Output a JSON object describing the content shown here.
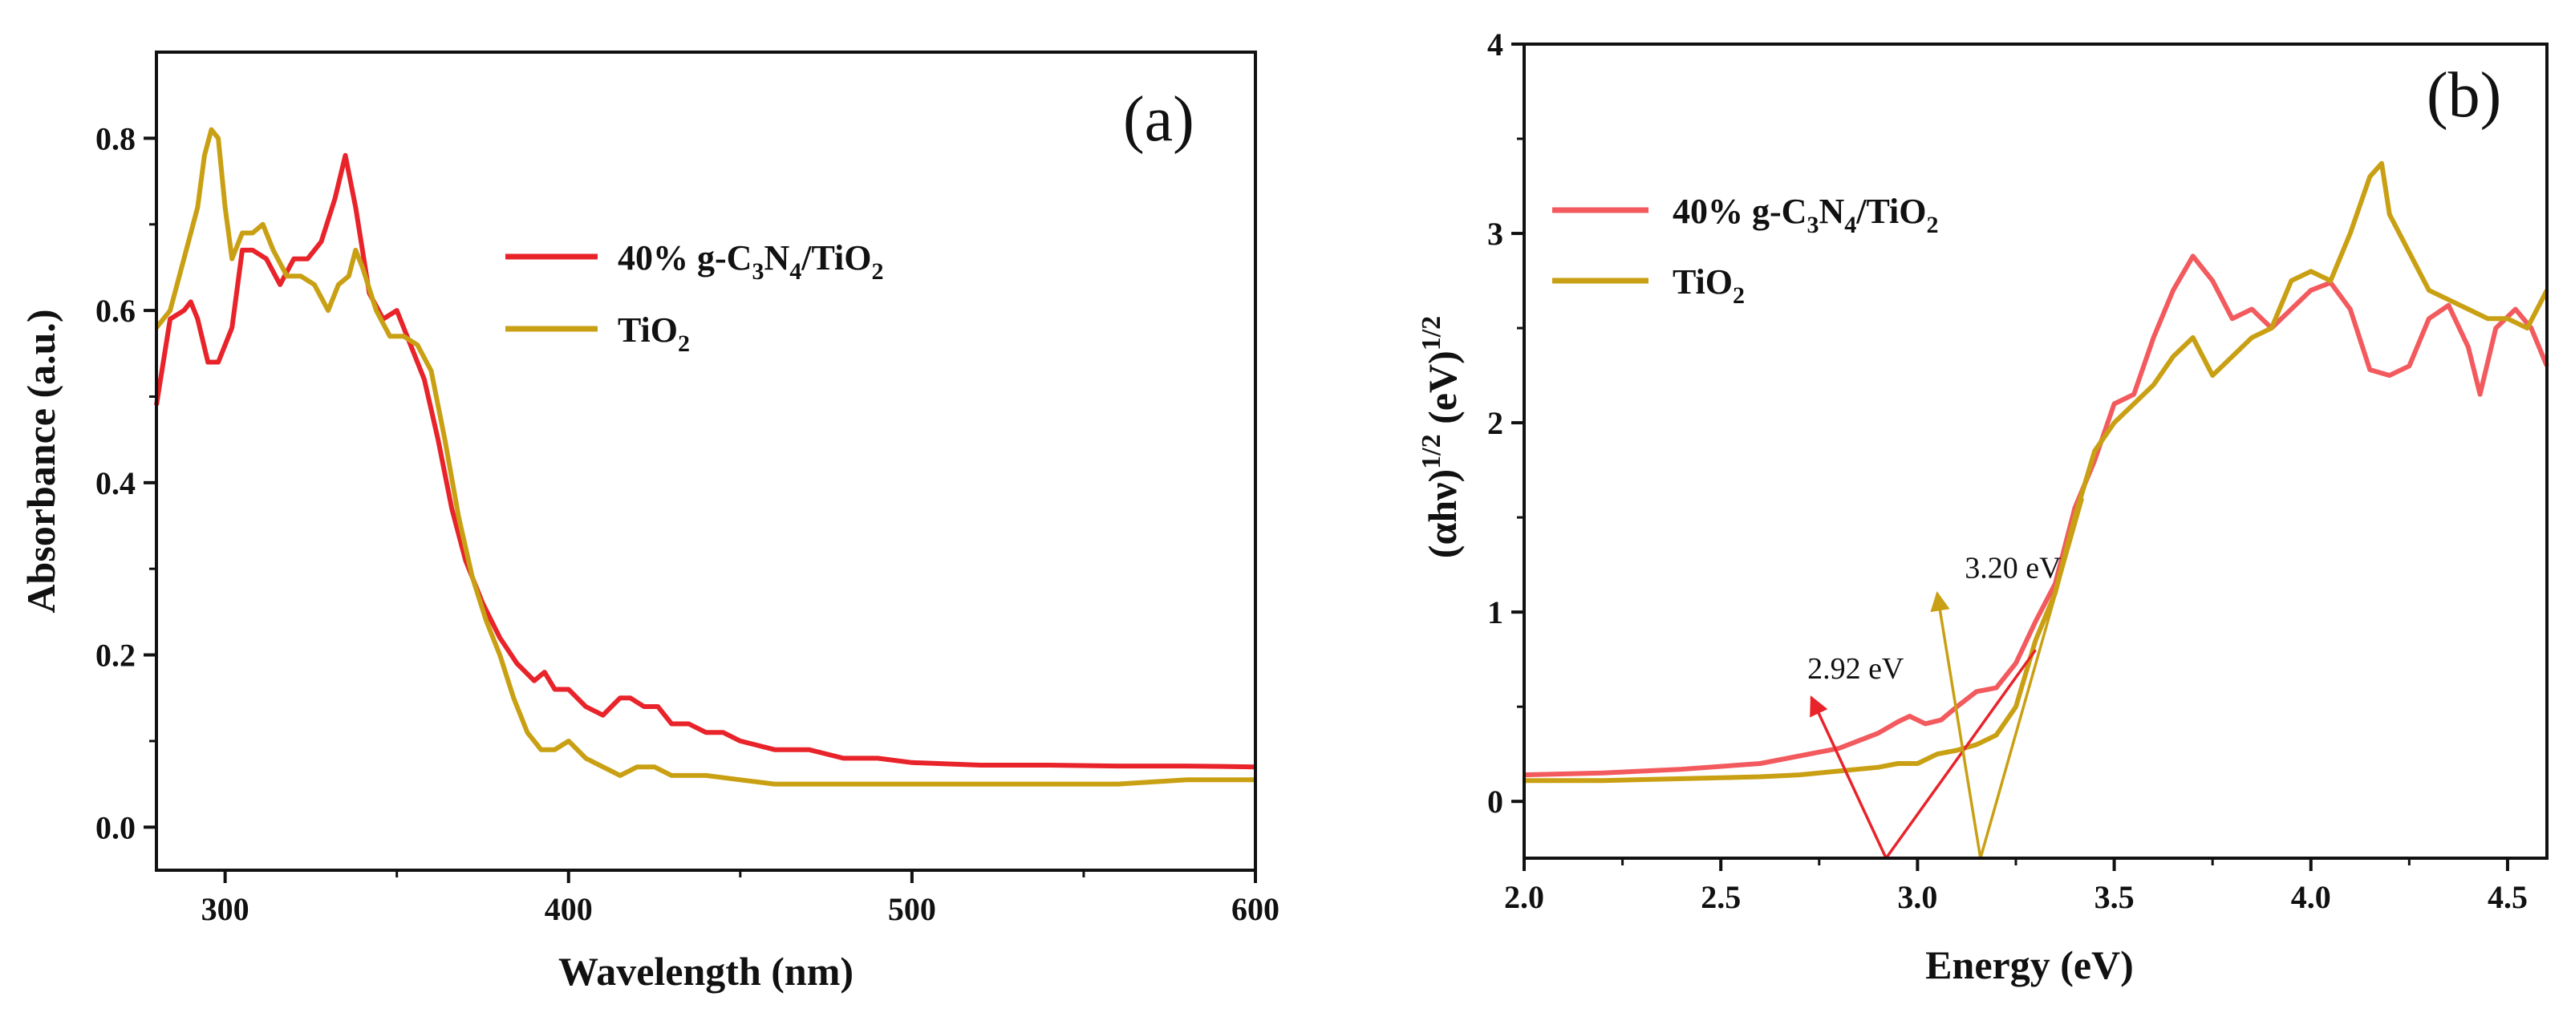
{
  "colors": {
    "composite": "#e8232a",
    "tio2": "#c9a013",
    "composite_b": "#f25a5e"
  },
  "chart_data": [
    {
      "id": "a",
      "type": "line",
      "panel_label": "(a)",
      "xlabel": "Wavelength (nm)",
      "ylabel": "Absorbance (a.u.)",
      "xlim": [
        280,
        600
      ],
      "ylim": [
        -0.05,
        0.9
      ],
      "xticks": [
        300,
        400,
        500,
        600
      ],
      "yticks": [
        0.0,
        0.2,
        0.4,
        0.6,
        0.8
      ],
      "ytick_labels": [
        "0.0",
        "0.2",
        "0.4",
        "0.6",
        "0.8"
      ],
      "legend": {
        "position": "upper-center",
        "entries": [
          {
            "name_main": "40% g-C",
            "sub1": "3",
            "mid": "N",
            "sub2": "4",
            "tail": "/TiO",
            "sub3": "2"
          },
          {
            "name_main": "TiO",
            "sub1": "2"
          }
        ]
      },
      "series": [
        {
          "name": "40% g-C3N4/TiO2",
          "color": "#e8232a",
          "x": [
            280,
            284,
            288,
            290,
            292,
            295,
            298,
            302,
            305,
            308,
            312,
            316,
            320,
            324,
            328,
            332,
            335,
            338,
            342,
            346,
            350,
            354,
            358,
            362,
            366,
            370,
            375,
            380,
            385,
            390,
            393,
            396,
            400,
            405,
            410,
            415,
            418,
            422,
            426,
            430,
            435,
            440,
            445,
            450,
            460,
            470,
            480,
            490,
            500,
            520,
            540,
            560,
            580,
            600
          ],
          "y": [
            0.49,
            0.59,
            0.6,
            0.61,
            0.59,
            0.54,
            0.54,
            0.58,
            0.67,
            0.67,
            0.66,
            0.63,
            0.66,
            0.66,
            0.68,
            0.73,
            0.78,
            0.72,
            0.62,
            0.59,
            0.6,
            0.56,
            0.52,
            0.45,
            0.37,
            0.31,
            0.26,
            0.22,
            0.19,
            0.17,
            0.18,
            0.16,
            0.16,
            0.14,
            0.13,
            0.15,
            0.15,
            0.14,
            0.14,
            0.12,
            0.12,
            0.11,
            0.11,
            0.1,
            0.09,
            0.09,
            0.08,
            0.08,
            0.075,
            0.072,
            0.072,
            0.071,
            0.071,
            0.07
          ]
        },
        {
          "name": "TiO2",
          "color": "#c9a013",
          "x": [
            280,
            284,
            288,
            292,
            294,
            296,
            298,
            300,
            302,
            305,
            308,
            311,
            314,
            318,
            322,
            326,
            330,
            333,
            336,
            338,
            340,
            344,
            348,
            352,
            356,
            360,
            364,
            368,
            372,
            376,
            380,
            384,
            388,
            392,
            396,
            400,
            405,
            410,
            415,
            420,
            425,
            430,
            440,
            450,
            460,
            480,
            500,
            520,
            540,
            560,
            580,
            600
          ],
          "y": [
            0.58,
            0.6,
            0.66,
            0.72,
            0.78,
            0.81,
            0.8,
            0.72,
            0.66,
            0.69,
            0.69,
            0.7,
            0.67,
            0.64,
            0.64,
            0.63,
            0.6,
            0.63,
            0.64,
            0.67,
            0.65,
            0.6,
            0.57,
            0.57,
            0.56,
            0.53,
            0.45,
            0.36,
            0.29,
            0.24,
            0.2,
            0.15,
            0.11,
            0.09,
            0.09,
            0.1,
            0.08,
            0.07,
            0.06,
            0.07,
            0.07,
            0.06,
            0.06,
            0.055,
            0.05,
            0.05,
            0.05,
            0.05,
            0.05,
            0.05,
            0.055,
            0.055
          ]
        }
      ]
    },
    {
      "id": "b",
      "type": "line",
      "panel_label": "(b)",
      "xlabel": "Energy (eV)",
      "ylabel": "(αhν)1/2 (eV)1/2",
      "ylabel_parts": {
        "p1": "(αhν)",
        "sup1": "1/2",
        "p2": "(eV)",
        "sup2": "1/2"
      },
      "xlim": [
        2.0,
        4.6
      ],
      "ylim": [
        -0.3,
        4.0
      ],
      "xticks": [
        2.0,
        2.5,
        3.0,
        3.5,
        4.0,
        4.5
      ],
      "xtick_labels": [
        "2.0",
        "2.5",
        "3.0",
        "3.5",
        "4.0",
        "4.5"
      ],
      "yticks": [
        0,
        1,
        2,
        3,
        4
      ],
      "ytick_labels": [
        "0",
        "1",
        "2",
        "3",
        "4"
      ],
      "legend": {
        "position": "upper-left",
        "entries": [
          {
            "name_main": "40% g-C",
            "sub1": "3",
            "mid": "N",
            "sub2": "4",
            "tail": "/TiO",
            "sub3": "2"
          },
          {
            "name_main": "TiO",
            "sub1": "2"
          }
        ]
      },
      "annotations": [
        {
          "text": "2.92 eV",
          "color": "#e8232a",
          "tangent_x": [
            2.92,
            3.3
          ],
          "tangent_y": [
            -0.3,
            0.8
          ],
          "arrow_to": [
            2.73,
            0.55
          ],
          "text_at": [
            2.72,
            0.65
          ]
        },
        {
          "text": "3.20 eV",
          "color": "#c9a013",
          "tangent_x": [
            3.16,
            3.42
          ],
          "tangent_y": [
            -0.3,
            1.6
          ],
          "arrow_to": [
            3.05,
            1.1
          ],
          "text_at": [
            3.12,
            1.18
          ]
        }
      ],
      "series": [
        {
          "name": "40% g-C3N4/TiO2",
          "color": "#f25a5e",
          "x": [
            2.0,
            2.2,
            2.4,
            2.6,
            2.7,
            2.8,
            2.9,
            2.95,
            2.98,
            3.02,
            3.06,
            3.1,
            3.15,
            3.2,
            3.25,
            3.3,
            3.35,
            3.4,
            3.45,
            3.5,
            3.55,
            3.6,
            3.65,
            3.7,
            3.75,
            3.8,
            3.85,
            3.9,
            3.95,
            4.0,
            4.05,
            4.1,
            4.15,
            4.2,
            4.25,
            4.3,
            4.35,
            4.4,
            4.43,
            4.47,
            4.52,
            4.56,
            4.6
          ],
          "y": [
            0.14,
            0.15,
            0.17,
            0.2,
            0.24,
            0.28,
            0.36,
            0.42,
            0.45,
            0.41,
            0.43,
            0.5,
            0.58,
            0.6,
            0.73,
            0.95,
            1.15,
            1.55,
            1.8,
            2.1,
            2.15,
            2.45,
            2.7,
            2.88,
            2.75,
            2.55,
            2.6,
            2.5,
            2.6,
            2.7,
            2.74,
            2.6,
            2.28,
            2.25,
            2.3,
            2.55,
            2.62,
            2.4,
            2.15,
            2.5,
            2.6,
            2.5,
            2.3
          ]
        },
        {
          "name": "TiO2",
          "color": "#c9a013",
          "x": [
            2.0,
            2.2,
            2.4,
            2.6,
            2.7,
            2.8,
            2.9,
            2.95,
            3.0,
            3.05,
            3.1,
            3.15,
            3.2,
            3.25,
            3.3,
            3.35,
            3.4,
            3.45,
            3.5,
            3.55,
            3.6,
            3.65,
            3.7,
            3.75,
            3.8,
            3.85,
            3.9,
            3.95,
            4.0,
            4.05,
            4.1,
            4.15,
            4.18,
            4.2,
            4.25,
            4.3,
            4.35,
            4.4,
            4.45,
            4.5,
            4.55,
            4.6
          ],
          "y": [
            0.11,
            0.11,
            0.12,
            0.13,
            0.14,
            0.16,
            0.18,
            0.2,
            0.2,
            0.25,
            0.27,
            0.3,
            0.35,
            0.5,
            0.85,
            1.1,
            1.5,
            1.85,
            2.0,
            2.1,
            2.2,
            2.35,
            2.45,
            2.25,
            2.35,
            2.45,
            2.5,
            2.75,
            2.8,
            2.75,
            3.0,
            3.3,
            3.37,
            3.1,
            2.9,
            2.7,
            2.65,
            2.6,
            2.55,
            2.55,
            2.5,
            2.7
          ]
        }
      ]
    }
  ]
}
